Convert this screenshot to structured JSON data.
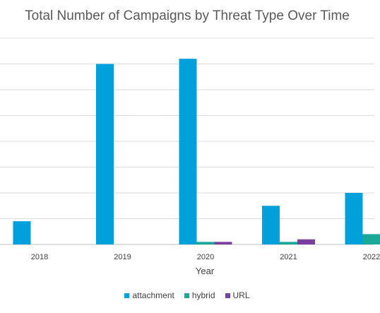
{
  "chart_data": {
    "type": "bar",
    "title": "Total Number of Campaigns by Threat Type Over Time",
    "xlabel": "Year",
    "ylabel": "",
    "categories": [
      "2018",
      "2019",
      "2020",
      "2021",
      "2022"
    ],
    "series": [
      {
        "name": "attachment",
        "color": "#00A0DC",
        "values": [
          45,
          350,
          360,
          75,
          100
        ]
      },
      {
        "name": "hybrid",
        "color": "#1AA898",
        "values": [
          0,
          0,
          5,
          5,
          20
        ]
      },
      {
        "name": "URL",
        "color": "#7A3F9E",
        "values": [
          0,
          0,
          5,
          10,
          0
        ]
      }
    ],
    "ylim": [
      0,
      400
    ],
    "grid": true,
    "legend_position": "bottom"
  }
}
